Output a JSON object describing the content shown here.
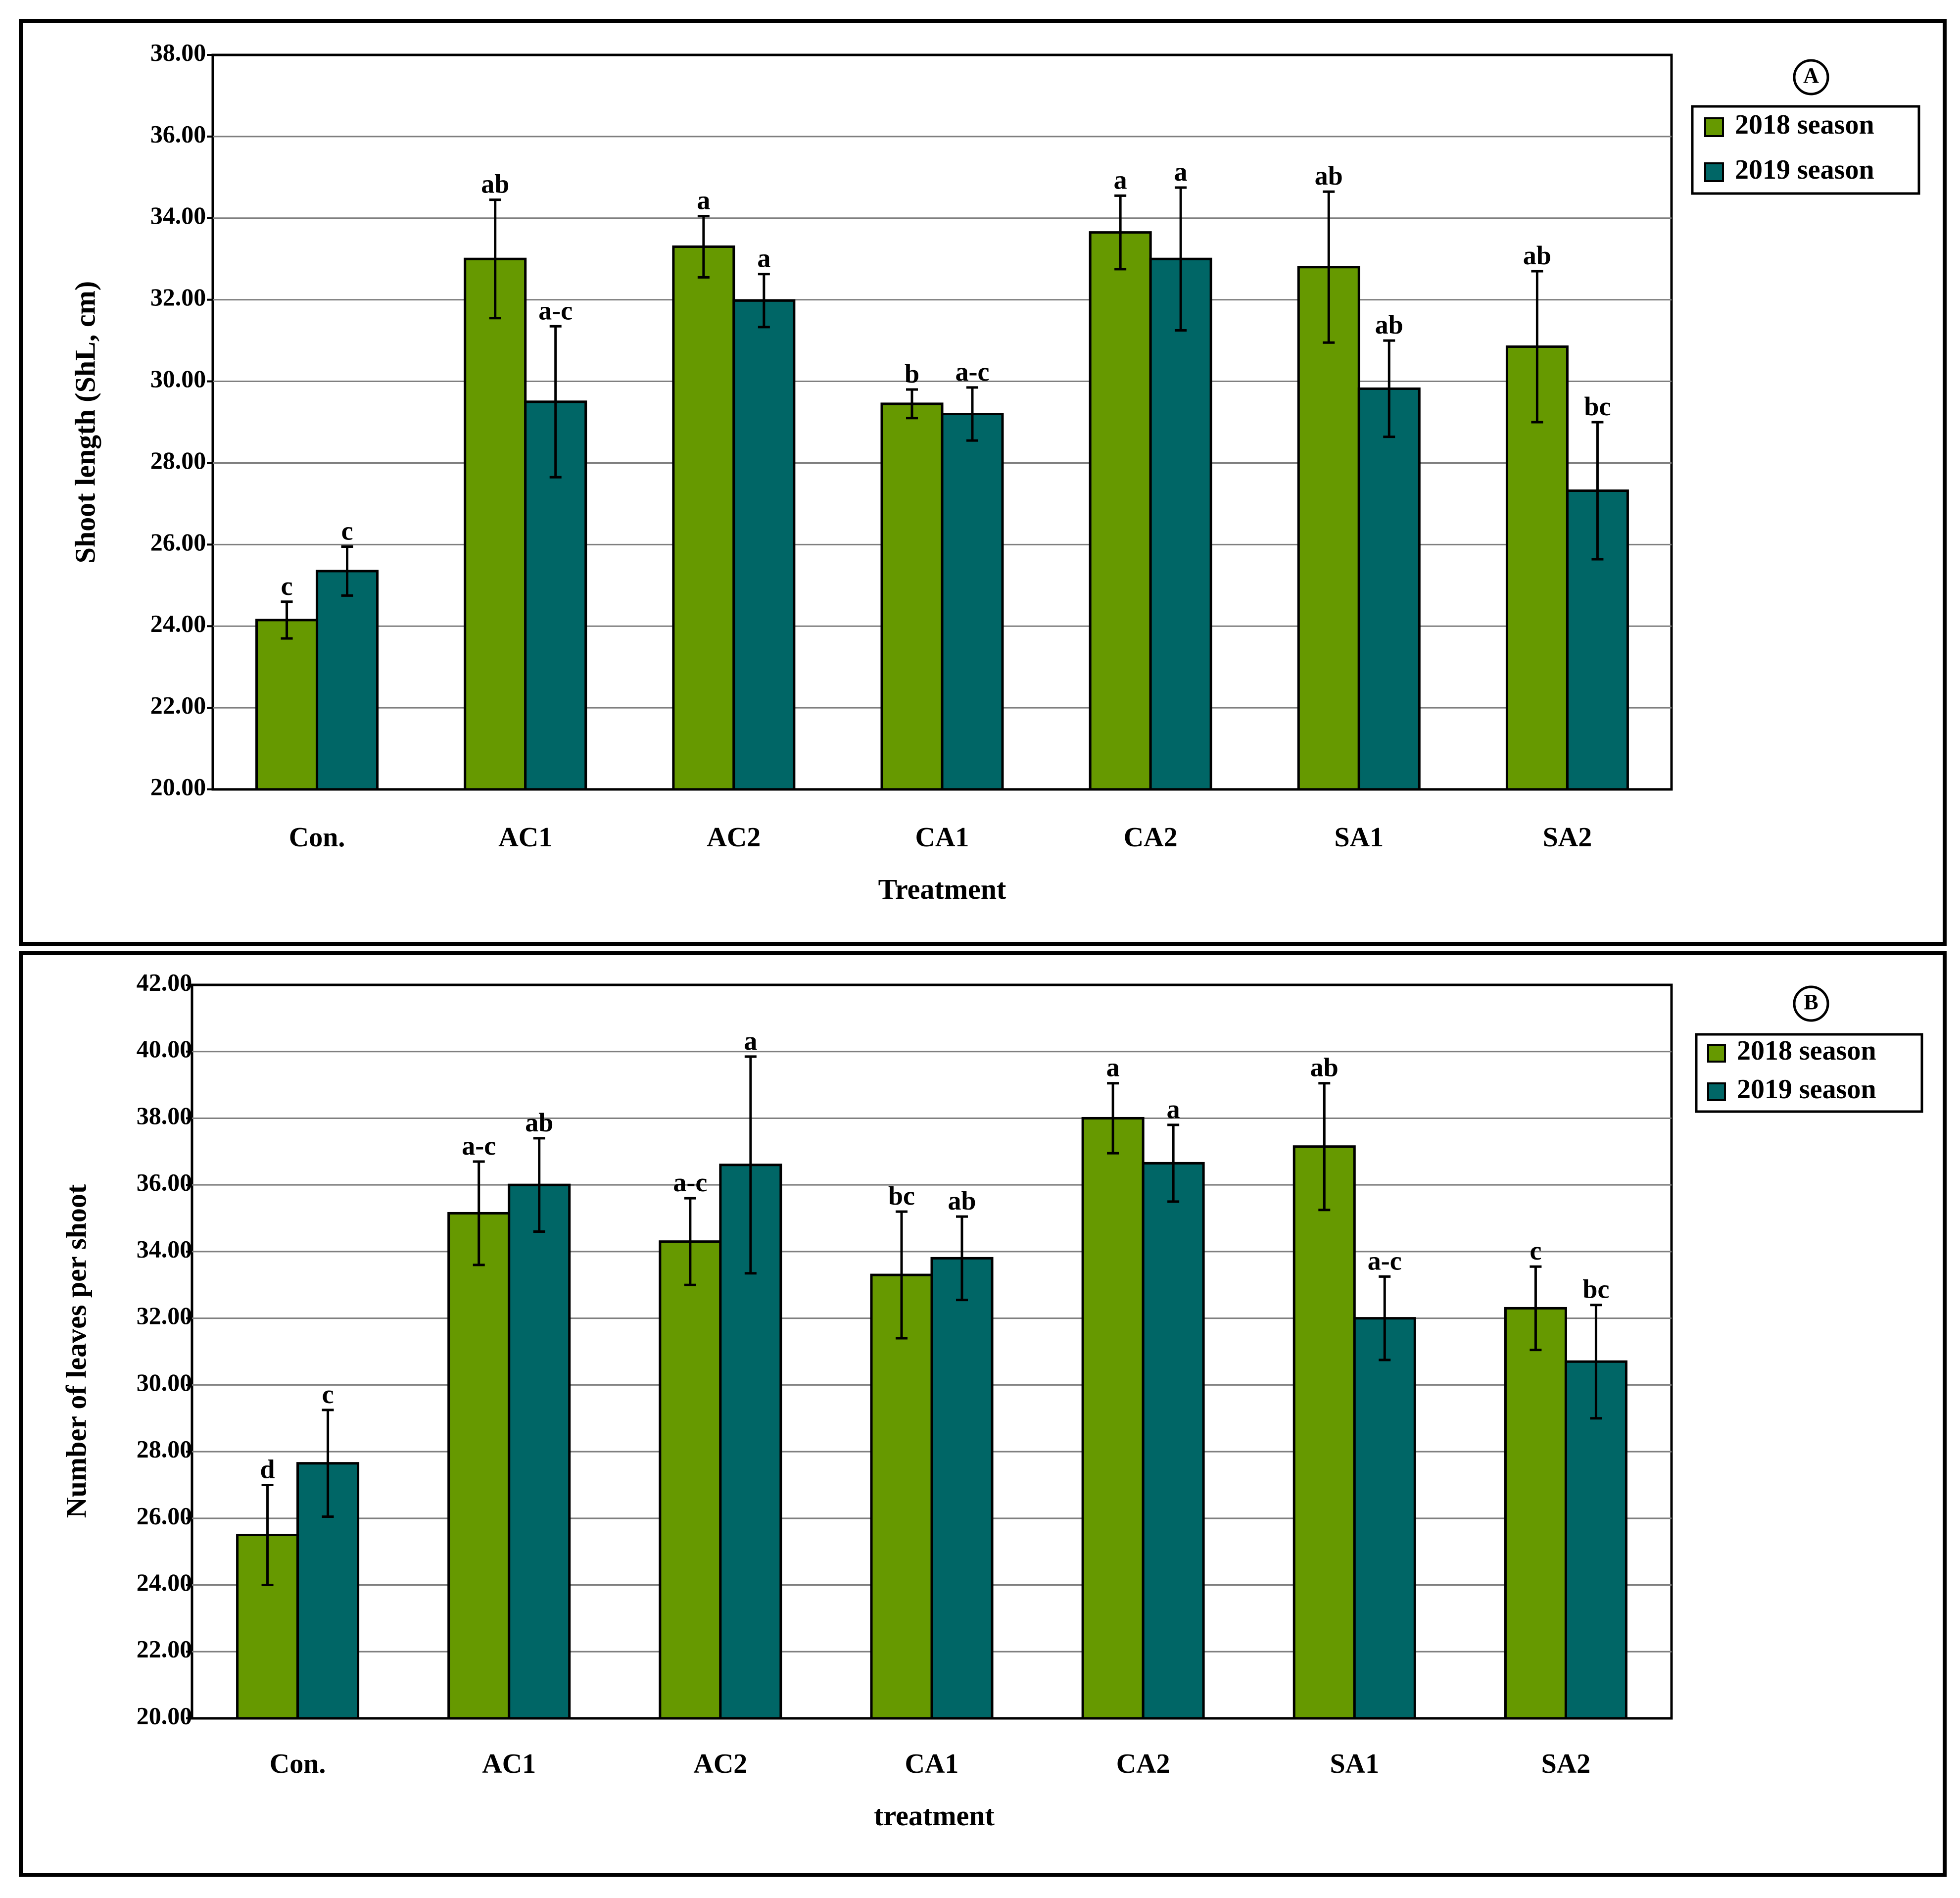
{
  "chart_data": [
    {
      "type": "bar",
      "panel_label": "A",
      "categories": [
        "Con.",
        "AC1",
        "AC2",
        "CA1",
        "CA2",
        "SA1",
        "SA2"
      ],
      "series": [
        {
          "name": "2018 season",
          "color": "#669900",
          "values": [
            24.15,
            33.0,
            33.3,
            29.45,
            33.65,
            32.8,
            30.85
          ],
          "errors": [
            0.45,
            1.45,
            0.75,
            0.35,
            0.9,
            1.85,
            1.85
          ],
          "significance": [
            "c",
            "ab",
            "a",
            "b",
            "a",
            "ab",
            "ab"
          ]
        },
        {
          "name": "2019 season",
          "color": "#006666",
          "values": [
            25.35,
            29.5,
            31.98,
            29.2,
            33.0,
            29.82,
            27.32
          ],
          "errors": [
            0.6,
            1.85,
            0.65,
            0.65,
            1.75,
            1.18,
            1.68
          ],
          "significance": [
            "c",
            "a-c",
            "a",
            "a-c",
            "a",
            "ab",
            "bc"
          ]
        }
      ],
      "xlabel": "Treatment",
      "ylabel": "Shoot length (ShL, cm)",
      "ylim": [
        20,
        38
      ],
      "yticks": [
        "20.00",
        "22.00",
        "24.00",
        "26.00",
        "28.00",
        "30.00",
        "32.00",
        "34.00",
        "36.00",
        "38.00"
      ],
      "grid": true,
      "legend_position": "top-right"
    },
    {
      "type": "bar",
      "panel_label": "B",
      "categories": [
        "Con.",
        "AC1",
        "AC2",
        "CA1",
        "CA2",
        "SA1",
        "SA2"
      ],
      "series": [
        {
          "name": "2018 season",
          "color": "#669900",
          "values": [
            25.5,
            35.15,
            34.3,
            33.3,
            38.0,
            37.15,
            32.3
          ],
          "errors": [
            1.5,
            1.55,
            1.3,
            1.9,
            1.05,
            1.9,
            1.25
          ],
          "significance": [
            "d",
            "a-c",
            "a-c",
            "bc",
            "a",
            "ab",
            "c"
          ]
        },
        {
          "name": "2019 season",
          "color": "#006666",
          "values": [
            27.65,
            36.0,
            36.6,
            33.8,
            36.65,
            32.0,
            30.7
          ],
          "errors": [
            1.6,
            1.4,
            3.25,
            1.25,
            1.15,
            1.25,
            1.7
          ],
          "significance": [
            "c",
            "ab",
            "a",
            "ab",
            "a",
            "a-c",
            "bc"
          ]
        }
      ],
      "xlabel": "treatment",
      "ylabel": "Number of leaves per shoot",
      "ylim": [
        20,
        42
      ],
      "yticks": [
        "20.00",
        "22.00",
        "24.00",
        "26.00",
        "28.00",
        "30.00",
        "32.00",
        "34.00",
        "36.00",
        "38.00",
        "40.00",
        "42.00"
      ],
      "grid": true,
      "legend_position": "top-right"
    }
  ]
}
